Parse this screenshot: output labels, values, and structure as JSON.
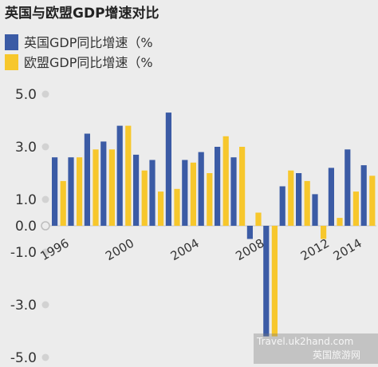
{
  "chart_data": {
    "type": "bar",
    "title": "英国与欧盟GDP增速对比",
    "x": [
      1996,
      1997,
      1998,
      1999,
      2000,
      2001,
      2002,
      2003,
      2004,
      2005,
      2006,
      2007,
      2008,
      2009,
      2010,
      2011,
      2012,
      2013,
      2014,
      2015
    ],
    "x_tick_labels": [
      "1996",
      "2000",
      "2004",
      "2008",
      "2012",
      "2014"
    ],
    "x_tick_years": [
      1996,
      2000,
      2004,
      2008,
      2012,
      2014
    ],
    "y_ticks": [
      5.0,
      3.0,
      1.0,
      0.0,
      -1.0,
      -3.0,
      -5.0
    ],
    "y_tick_labels": [
      "5.0",
      "3.0",
      "1.0",
      "0.0",
      "-1.0",
      "-3.0",
      "-5.0"
    ],
    "ylim": [
      -5.2,
      5.3
    ],
    "legend_position": "top-left",
    "series": [
      {
        "name": "英国GDP同比增速（%",
        "color": "#3b5ba5",
        "values": [
          2.6,
          2.6,
          3.5,
          3.2,
          3.8,
          2.7,
          2.5,
          4.3,
          2.5,
          2.8,
          3.0,
          2.6,
          -0.5,
          -4.2,
          1.5,
          2.0,
          1.2,
          2.2,
          2.9,
          2.3
        ]
      },
      {
        "name": "欧盟GDP同比增速（%",
        "color": "#f7c72c",
        "values": [
          1.7,
          2.6,
          2.9,
          2.9,
          3.8,
          2.1,
          1.3,
          1.4,
          2.4,
          2.0,
          3.4,
          3.0,
          0.5,
          -4.2,
          2.1,
          1.7,
          -0.5,
          0.3,
          1.3,
          1.9
        ]
      }
    ]
  },
  "watermark": {
    "line1": "Travel.uk2hand.com",
    "line2": "英国旅游网"
  }
}
